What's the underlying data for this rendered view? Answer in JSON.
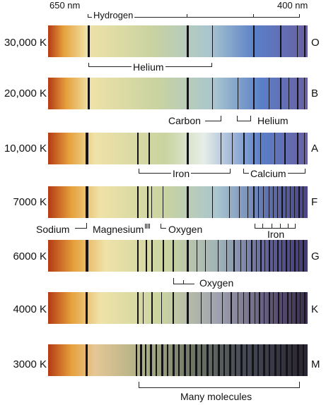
{
  "scale": {
    "left_label": "650 nm",
    "right_label": "400 nm",
    "top_label": "Hydrogen"
  },
  "spectra": [
    {
      "temp": "30,000 K",
      "class": "O"
    },
    {
      "temp": "20,000 K",
      "class": "B"
    },
    {
      "temp": "10,000 K",
      "class": "A"
    },
    {
      "temp": "7000 K",
      "class": "F"
    },
    {
      "temp": "6000 K",
      "class": "G"
    },
    {
      "temp": "4000 K",
      "class": "K"
    },
    {
      "temp": "3000 K",
      "class": "M"
    }
  ],
  "labels": {
    "helium_o": "Helium",
    "carbon": "Carbon",
    "helium_b": "Helium",
    "iron_a": "Iron",
    "calcium": "Calcium",
    "sodium": "Sodium",
    "magnesium": "Magnesium",
    "oxygen_f": "Oxygen",
    "iron_f": "Iron",
    "oxygen_g": "Oxygen",
    "molecules": "Many molecules"
  },
  "colors": {
    "red": "#b43a14",
    "orange": "#e6a13c",
    "yellow": "#efe2a8",
    "green": "#c9d3a0",
    "cyan": "#a9c6cf",
    "blue": "#5a7fc8",
    "violet": "#6a5fa2",
    "line": "#141418"
  }
}
